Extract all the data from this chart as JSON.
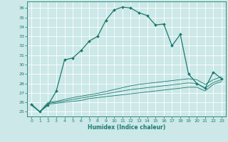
{
  "xlabel": "Humidex (Indice chaleur)",
  "bg_color": "#cce8e8",
  "grid_color": "#ffffff",
  "line_color": "#1a7a6e",
  "xlim": [
    -0.5,
    23.5
  ],
  "ylim": [
    24.5,
    36.7
  ],
  "xticks": [
    0,
    1,
    2,
    3,
    4,
    5,
    6,
    7,
    8,
    9,
    10,
    11,
    12,
    13,
    14,
    15,
    16,
    17,
    18,
    19,
    20,
    21,
    22,
    23
  ],
  "yticks": [
    25,
    26,
    27,
    28,
    29,
    30,
    31,
    32,
    33,
    34,
    35,
    36
  ],
  "line1_x": [
    0,
    1,
    2,
    3,
    4,
    5,
    6,
    7,
    8,
    9,
    10,
    11,
    12,
    13,
    14,
    15,
    16,
    17,
    18,
    19,
    20,
    21,
    22,
    23
  ],
  "line1_y": [
    25.8,
    25.0,
    25.7,
    27.2,
    30.5,
    30.7,
    31.5,
    32.5,
    33.0,
    34.7,
    35.8,
    36.1,
    36.0,
    35.5,
    35.2,
    34.2,
    34.3,
    32.0,
    33.2,
    29.0,
    28.0,
    27.5,
    29.2,
    28.5
  ],
  "line2_x": [
    0,
    1,
    2,
    3,
    4,
    5,
    6,
    7,
    8,
    9,
    10,
    11,
    12,
    13,
    14,
    15,
    16,
    17,
    18,
    19,
    20,
    21,
    22,
    23
  ],
  "line2_y": [
    25.7,
    25.0,
    25.8,
    25.9,
    26.0,
    26.1,
    26.2,
    26.4,
    26.5,
    26.6,
    26.7,
    26.8,
    26.9,
    27.0,
    27.1,
    27.2,
    27.3,
    27.4,
    27.5,
    27.6,
    27.6,
    27.2,
    27.9,
    28.2
  ],
  "line3_x": [
    0,
    1,
    2,
    3,
    4,
    5,
    6,
    7,
    8,
    9,
    10,
    11,
    12,
    13,
    14,
    15,
    16,
    17,
    18,
    19,
    20,
    21,
    22,
    23
  ],
  "line3_y": [
    25.7,
    25.0,
    25.9,
    26.0,
    26.15,
    26.3,
    26.45,
    26.6,
    26.75,
    26.9,
    27.05,
    27.2,
    27.35,
    27.45,
    27.55,
    27.65,
    27.75,
    27.85,
    27.95,
    28.05,
    28.0,
    27.5,
    28.1,
    28.4
  ],
  "line4_x": [
    0,
    1,
    2,
    3,
    4,
    5,
    6,
    7,
    8,
    9,
    10,
    11,
    12,
    13,
    14,
    15,
    16,
    17,
    18,
    19,
    20,
    21,
    22,
    23
  ],
  "line4_y": [
    25.7,
    25.0,
    26.0,
    26.1,
    26.3,
    26.5,
    26.65,
    26.8,
    26.95,
    27.15,
    27.35,
    27.55,
    27.75,
    27.9,
    28.0,
    28.1,
    28.2,
    28.3,
    28.4,
    28.5,
    28.4,
    27.9,
    28.4,
    28.7
  ]
}
